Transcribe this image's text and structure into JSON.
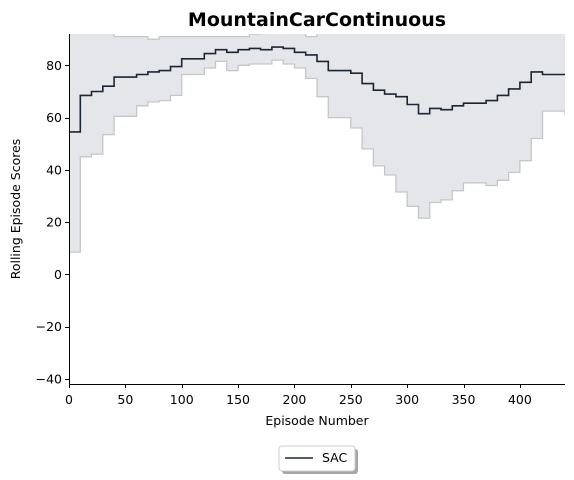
{
  "chart_data": {
    "type": "line",
    "title": "MountainCarContinuous",
    "xlabel": "Episode Number",
    "ylabel": "Rolling Episode Scores",
    "xlim": [
      0,
      440
    ],
    "ylim": [
      -42,
      92
    ],
    "xticks": [
      0,
      50,
      100,
      150,
      200,
      250,
      300,
      350,
      400
    ],
    "yticks": [
      -40,
      -20,
      0,
      20,
      40,
      60,
      80
    ],
    "grid": false,
    "legend_position": "bottom-center",
    "line_color": "#1c2633",
    "band_fill_color": "#e4e6e9",
    "band_edge_color": "#c4c6c9",
    "series": [
      {
        "name": "SAC",
        "x": [
          0,
          10,
          20,
          30,
          40,
          60,
          70,
          80,
          90,
          100,
          120,
          130,
          140,
          150,
          160,
          170,
          180,
          190,
          200,
          210,
          220,
          230,
          250,
          260,
          270,
          280,
          290,
          300,
          310,
          320,
          330,
          340,
          350,
          370,
          380,
          390,
          400,
          410,
          420,
          440
        ],
        "mean": [
          54.5,
          68.5,
          70,
          72,
          75.5,
          76.5,
          77.5,
          78,
          79.5,
          82.5,
          84.5,
          86,
          85,
          86,
          86.5,
          86,
          87,
          86.5,
          85,
          84,
          81.5,
          78,
          77,
          73,
          70.5,
          69,
          68,
          65,
          61.5,
          63.5,
          63,
          64.5,
          65.5,
          66.5,
          68.5,
          71,
          73.5,
          77.5,
          76.5,
          76.5
        ],
        "upper": [
          93,
          95,
          93,
          93,
          91,
          91,
          90,
          91,
          91,
          91,
          91,
          91,
          91,
          91,
          92,
          93,
          93,
          93,
          93,
          91,
          93,
          93,
          93,
          93,
          93,
          93,
          93,
          93,
          93,
          93,
          93,
          93,
          93,
          93,
          93,
          93,
          93,
          93,
          92.5,
          92.5
        ],
        "lower": [
          8.5,
          45,
          46,
          53.5,
          60.5,
          64.5,
          66,
          66.5,
          68.5,
          76.5,
          79,
          81.5,
          78,
          80,
          80.5,
          80.5,
          82,
          80.5,
          79,
          75,
          68,
          60,
          56,
          48,
          41.5,
          38,
          31.5,
          26,
          21.5,
          27.5,
          28.5,
          32,
          35,
          34,
          36,
          39,
          43.5,
          52,
          62.5,
          61
        ]
      }
    ]
  }
}
